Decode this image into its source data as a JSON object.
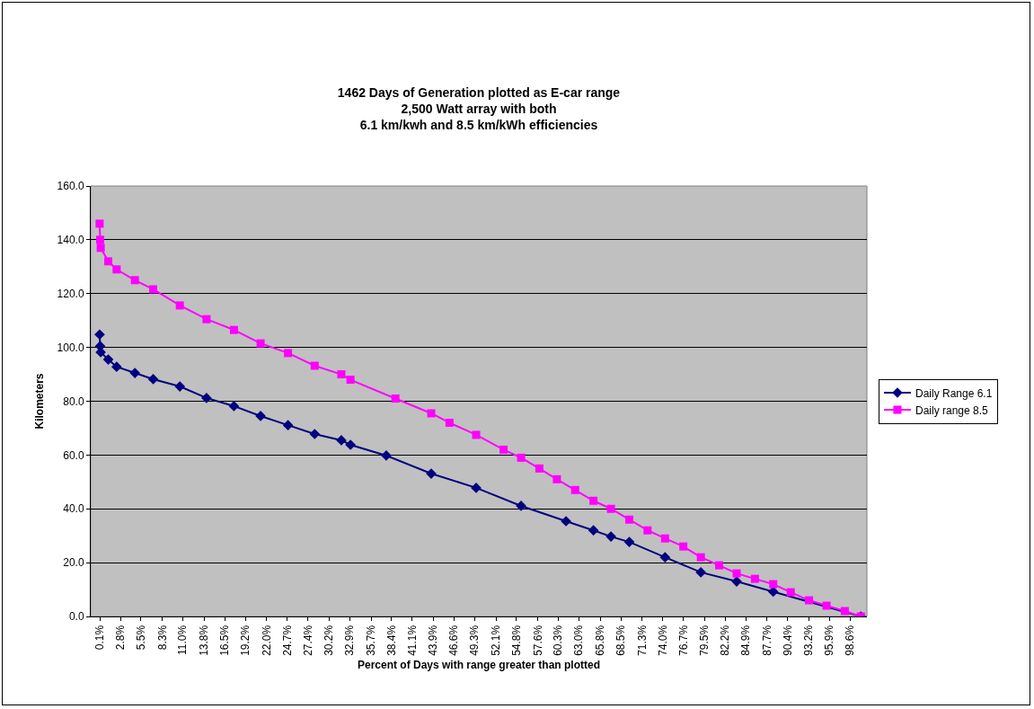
{
  "chart_data": {
    "type": "line",
    "title": "1462 Days of Generation plotted as E-car range\n2,500 Watt array with both\n6.1 km/kwh and 8.5 km/kWh efficiencies",
    "xlabel": "Percent of Days with range greater than plotted",
    "ylabel": "Kilometers",
    "series": [
      {
        "name": "Daily Range 6.1",
        "color": "#000080",
        "marker": "diamond",
        "x": [
          0.07,
          0.14,
          0.21,
          1.2,
          2.3,
          4.7,
          7.1,
          10.6,
          14.1,
          17.7,
          21.2,
          24.8,
          28.3,
          31.8,
          33.0,
          37.7,
          43.6,
          49.5,
          55.4,
          61.3,
          64.9,
          67.2,
          69.6,
          74.3,
          79.0,
          83.7,
          88.5,
          100
        ],
        "values": [
          104.8,
          100.5,
          98.2,
          95.5,
          92.8,
          90.5,
          88.2,
          85.5,
          81.2,
          78.2,
          74.5,
          71.1,
          67.8,
          65.5,
          63.8,
          59.8,
          53.1,
          47.8,
          41.1,
          35.4,
          32,
          29.7,
          27.7,
          22,
          16.4,
          13,
          9.2,
          0
        ]
      },
      {
        "name": "Daily range 8.5",
        "color": "#ff00ff",
        "marker": "square",
        "x": [
          0.07,
          0.14,
          0.21,
          1.2,
          2.3,
          4.7,
          7.1,
          10.6,
          14.1,
          17.7,
          21.2,
          24.8,
          28.3,
          31.8,
          33.0,
          38.9,
          43.6,
          46.0,
          49.5,
          53.1,
          55.4,
          57.8,
          60.1,
          62.5,
          64.9,
          67.2,
          69.6,
          72.0,
          74.3,
          76.7,
          79.0,
          81.4,
          83.7,
          86.1,
          88.5,
          90.8,
          93.2,
          95.5,
          97.9,
          100
        ],
        "values": [
          146,
          140,
          137,
          132,
          129,
          125,
          121.6,
          115.6,
          110.5,
          106.5,
          101.5,
          97.9,
          93.2,
          90,
          88,
          81,
          75.5,
          72,
          67.5,
          62,
          59,
          55,
          51,
          47,
          43,
          40,
          36,
          32,
          29,
          26,
          22,
          19,
          16,
          14,
          12,
          9,
          6,
          4,
          2,
          0
        ]
      }
    ],
    "xlim": [
      -1.1,
      100.8
    ],
    "xticks": [
      {
        "value": 0.1,
        "label": "0.1%"
      },
      {
        "value": 2.8,
        "label": "2.8%"
      },
      {
        "value": 5.5,
        "label": "5.5%"
      },
      {
        "value": 8.3,
        "label": "8.3%"
      },
      {
        "value": 11.0,
        "label": "11.0%"
      },
      {
        "value": 13.8,
        "label": "13.8%"
      },
      {
        "value": 16.5,
        "label": "16.5%"
      },
      {
        "value": 19.2,
        "label": "19.2%"
      },
      {
        "value": 22.0,
        "label": "22.0%"
      },
      {
        "value": 24.7,
        "label": "24.7%"
      },
      {
        "value": 27.4,
        "label": "27.4%"
      },
      {
        "value": 30.2,
        "label": "30.2%"
      },
      {
        "value": 32.9,
        "label": "32.9%"
      },
      {
        "value": 35.7,
        "label": "35.7%"
      },
      {
        "value": 38.4,
        "label": "38.4%"
      },
      {
        "value": 41.1,
        "label": "41.1%"
      },
      {
        "value": 43.9,
        "label": "43.9%"
      },
      {
        "value": 46.6,
        "label": "46.6%"
      },
      {
        "value": 49.3,
        "label": "49.3%"
      },
      {
        "value": 52.1,
        "label": "52.1%"
      },
      {
        "value": 54.8,
        "label": "54.8%"
      },
      {
        "value": 57.6,
        "label": "57.6%"
      },
      {
        "value": 60.3,
        "label": "60.3%"
      },
      {
        "value": 63.0,
        "label": "63.0%"
      },
      {
        "value": 65.8,
        "label": "65.8%"
      },
      {
        "value": 68.5,
        "label": "68.5%"
      },
      {
        "value": 71.3,
        "label": "71.3%"
      },
      {
        "value": 74.0,
        "label": "74.0%"
      },
      {
        "value": 76.7,
        "label": "76.7%"
      },
      {
        "value": 79.5,
        "label": "79.5%"
      },
      {
        "value": 82.2,
        "label": "82.2%"
      },
      {
        "value": 84.9,
        "label": "84.9%"
      },
      {
        "value": 87.7,
        "label": "87.7%"
      },
      {
        "value": 90.4,
        "label": "90.4%"
      },
      {
        "value": 93.2,
        "label": "93.2%"
      },
      {
        "value": 95.9,
        "label": "95.9%"
      },
      {
        "value": 98.6,
        "label": "98.6%"
      }
    ],
    "ylim": [
      0,
      160
    ],
    "yticks": [
      {
        "value": 0,
        "label": "0.0"
      },
      {
        "value": 20,
        "label": "20.0"
      },
      {
        "value": 40,
        "label": "40.0"
      },
      {
        "value": 60,
        "label": "60.0"
      },
      {
        "value": 80,
        "label": "80.0"
      },
      {
        "value": 100,
        "label": "100.0"
      },
      {
        "value": 120,
        "label": "120.0"
      },
      {
        "value": 140,
        "label": "140.0"
      },
      {
        "value": 160,
        "label": "160.0"
      }
    ],
    "grid": "y",
    "legend": "right",
    "line_style": "solid"
  }
}
